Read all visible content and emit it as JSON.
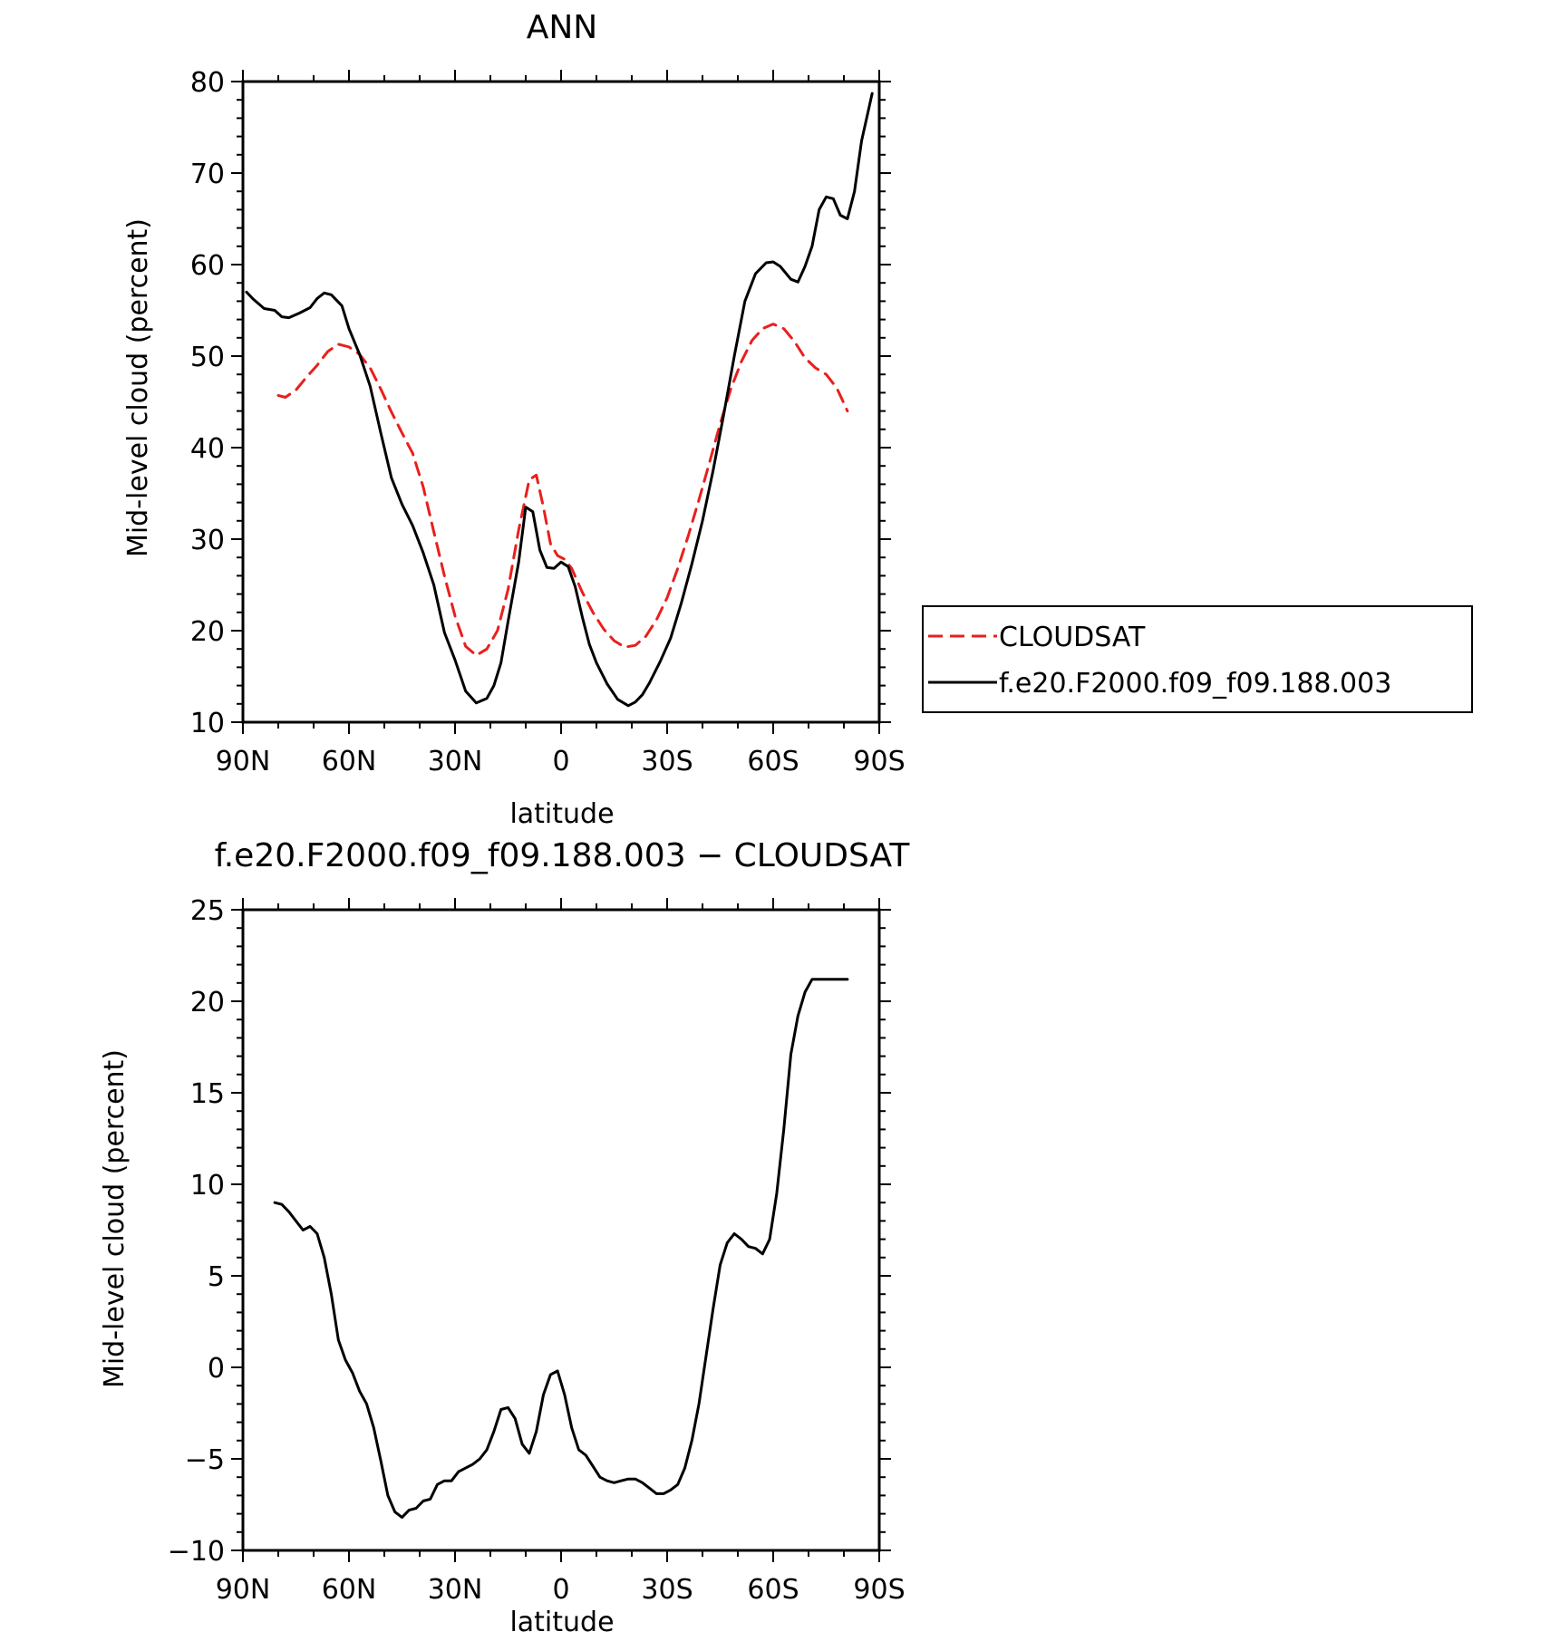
{
  "chart_data": [
    {
      "type": "line",
      "title": "ANN",
      "xlabel": "latitude",
      "ylabel": "Mid-level cloud (percent)",
      "xlim": [
        90,
        -90
      ],
      "ylim": [
        10,
        80
      ],
      "x_ticks": [
        {
          "value": 90,
          "label": "90N"
        },
        {
          "value": 60,
          "label": "60N"
        },
        {
          "value": 30,
          "label": "30N"
        },
        {
          "value": 0,
          "label": "0"
        },
        {
          "value": -30,
          "label": "30S"
        },
        {
          "value": -60,
          "label": "60S"
        },
        {
          "value": -90,
          "label": "90S"
        }
      ],
      "y_ticks": [
        {
          "value": 10,
          "label": "10"
        },
        {
          "value": 20,
          "label": "20"
        },
        {
          "value": 30,
          "label": "30"
        },
        {
          "value": 40,
          "label": "40"
        },
        {
          "value": 50,
          "label": "50"
        },
        {
          "value": 60,
          "label": "60"
        },
        {
          "value": 70,
          "label": "70"
        },
        {
          "value": 80,
          "label": "80"
        }
      ],
      "legend": {
        "placement": "right",
        "entries": [
          "CLOUDSAT",
          "f.e20.F2000.f09_f09.188.003"
        ]
      },
      "series": [
        {
          "name": "CLOUDSAT",
          "color": "#e8201d",
          "dash": true,
          "x": [
            80,
            78,
            75,
            72,
            69,
            66,
            63,
            60,
            57,
            54,
            51,
            48,
            45,
            42,
            39,
            36,
            33,
            30,
            27,
            24,
            21,
            18,
            15,
            12,
            9,
            7,
            5,
            3,
            1,
            -1,
            -3,
            -6,
            -9,
            -12,
            -15,
            -18,
            -21,
            -24,
            -27,
            -30,
            -33,
            -36,
            -39,
            -42,
            -45,
            -48,
            -51,
            -54,
            -57,
            -60,
            -63,
            -66,
            -69,
            -72,
            -75,
            -78,
            -81
          ],
          "values": [
            45.7,
            45.5,
            46.3,
            47.7,
            49.0,
            50.5,
            51.3,
            51.0,
            50.2,
            48.7,
            46.4,
            43.9,
            41.6,
            39.4,
            35.7,
            30.8,
            26.0,
            21.6,
            18.3,
            17.3,
            18.0,
            20.0,
            24.5,
            31.0,
            36.5,
            37.0,
            33.5,
            29.5,
            28.2,
            27.8,
            26.8,
            24.2,
            22.0,
            20.2,
            18.9,
            18.2,
            18.4,
            19.4,
            21.2,
            23.6,
            26.8,
            30.4,
            34.3,
            38.4,
            42.6,
            46.4,
            49.4,
            51.7,
            53.0,
            53.5,
            53.0,
            51.6,
            49.8,
            48.7,
            48.0,
            46.5,
            44.0
          ]
        },
        {
          "name": "f.e20.F2000.f09_f09.188.003",
          "color": "#000000",
          "dash": false,
          "x": [
            89,
            87,
            84,
            81,
            79,
            77,
            74,
            71,
            69,
            67,
            65,
            62,
            60,
            57,
            54,
            51,
            48,
            45,
            42,
            39,
            36,
            33,
            30,
            27,
            24,
            21,
            19,
            17,
            15,
            12,
            10,
            8,
            6,
            4,
            2,
            0,
            -2,
            -4,
            -6,
            -8,
            -10,
            -13,
            -16,
            -19,
            -21,
            -23,
            -25,
            -28,
            -31,
            -34,
            -37,
            -40,
            -43,
            -46,
            -49,
            -52,
            -55,
            -58,
            -60,
            -62,
            -65,
            -67,
            -69,
            -71,
            -73,
            -75,
            -77,
            -79,
            -81,
            -83,
            -85,
            -88
          ],
          "values": [
            57.0,
            56.2,
            55.2,
            55.0,
            54.3,
            54.2,
            54.7,
            55.3,
            56.3,
            56.9,
            56.7,
            55.5,
            53.0,
            50.2,
            46.7,
            41.6,
            36.7,
            33.8,
            31.5,
            28.5,
            25.0,
            19.8,
            16.8,
            13.4,
            12.1,
            12.6,
            14.0,
            16.5,
            21.0,
            27.5,
            33.5,
            33.0,
            28.8,
            26.9,
            26.8,
            27.5,
            27.0,
            24.8,
            21.5,
            18.5,
            16.5,
            14.2,
            12.5,
            11.8,
            12.2,
            13.0,
            14.3,
            16.6,
            19.2,
            23.0,
            27.3,
            32.0,
            37.5,
            43.6,
            50.0,
            56.0,
            59.0,
            60.2,
            60.3,
            59.8,
            58.4,
            58.1,
            59.8,
            62.0,
            66.0,
            67.4,
            67.2,
            65.4,
            65.0,
            68.0,
            73.5,
            78.7
          ]
        }
      ]
    },
    {
      "type": "line",
      "title": "f.e20.F2000.f09_f09.188.003 − CLOUDSAT",
      "xlabel": "latitude",
      "ylabel": "Mid-level cloud (percent)",
      "xlim": [
        90,
        -90
      ],
      "ylim": [
        -10,
        25
      ],
      "x_ticks": [
        {
          "value": 90,
          "label": "90N"
        },
        {
          "value": 60,
          "label": "60N"
        },
        {
          "value": 30,
          "label": "30N"
        },
        {
          "value": 0,
          "label": "0"
        },
        {
          "value": -30,
          "label": "30S"
        },
        {
          "value": -60,
          "label": "60S"
        },
        {
          "value": -90,
          "label": "90S"
        }
      ],
      "y_ticks": [
        {
          "value": -10,
          "label": "−10"
        },
        {
          "value": -5,
          "label": "−5"
        },
        {
          "value": 0,
          "label": "0"
        },
        {
          "value": 5,
          "label": "5"
        },
        {
          "value": 10,
          "label": "10"
        },
        {
          "value": 15,
          "label": "15"
        },
        {
          "value": 20,
          "label": "20"
        },
        {
          "value": 25,
          "label": "25"
        }
      ],
      "series": [
        {
          "color": "#000000",
          "dash": false,
          "x": [
            81,
            79,
            77,
            75,
            73,
            71,
            69,
            67,
            65,
            63,
            61,
            59,
            57,
            55,
            53,
            51,
            49,
            47,
            45,
            43,
            41,
            39,
            37,
            35,
            33,
            31,
            29,
            27,
            25,
            23,
            21,
            19,
            17,
            15,
            13,
            11,
            9,
            7,
            5,
            3,
            1,
            -1,
            -3,
            -5,
            -7,
            -9,
            -11,
            -13,
            -15,
            -17,
            -19,
            -21,
            -23,
            -25,
            -27,
            -29,
            -31,
            -33,
            -35,
            -37,
            -39,
            -41,
            -43,
            -45,
            -47,
            -49,
            -51,
            -53,
            -55,
            -57,
            -59,
            -61,
            -63,
            -65,
            -67,
            -69,
            -71,
            -73,
            -75,
            -77,
            -79,
            -81
          ],
          "values": [
            9.0,
            8.9,
            8.5,
            8.0,
            7.5,
            7.7,
            7.3,
            6.0,
            4.0,
            1.5,
            0.4,
            -0.3,
            -1.3,
            -2.0,
            -3.3,
            -5.1,
            -7.0,
            -7.9,
            -8.2,
            -7.8,
            -7.7,
            -7.3,
            -7.2,
            -6.4,
            -6.2,
            -6.2,
            -5.7,
            -5.5,
            -5.3,
            -5.0,
            -4.5,
            -3.5,
            -2.3,
            -2.2,
            -2.8,
            -4.2,
            -4.7,
            -3.5,
            -1.5,
            -0.4,
            -0.2,
            -1.5,
            -3.3,
            -4.5,
            -4.8,
            -5.4,
            -6.0,
            -6.2,
            -6.3,
            -6.2,
            -6.1,
            -6.1,
            -6.3,
            -6.6,
            -6.9,
            -6.9,
            -6.7,
            -6.4,
            -5.5,
            -4.0,
            -2.0,
            0.6,
            3.2,
            5.6,
            6.8,
            7.3,
            7.0,
            6.6,
            6.5,
            6.2,
            7.0,
            9.5,
            13.0,
            17.1,
            19.2,
            20.5,
            21.2,
            21.2,
            21.2,
            21.2,
            21.2,
            21.2
          ]
        }
      ]
    }
  ]
}
